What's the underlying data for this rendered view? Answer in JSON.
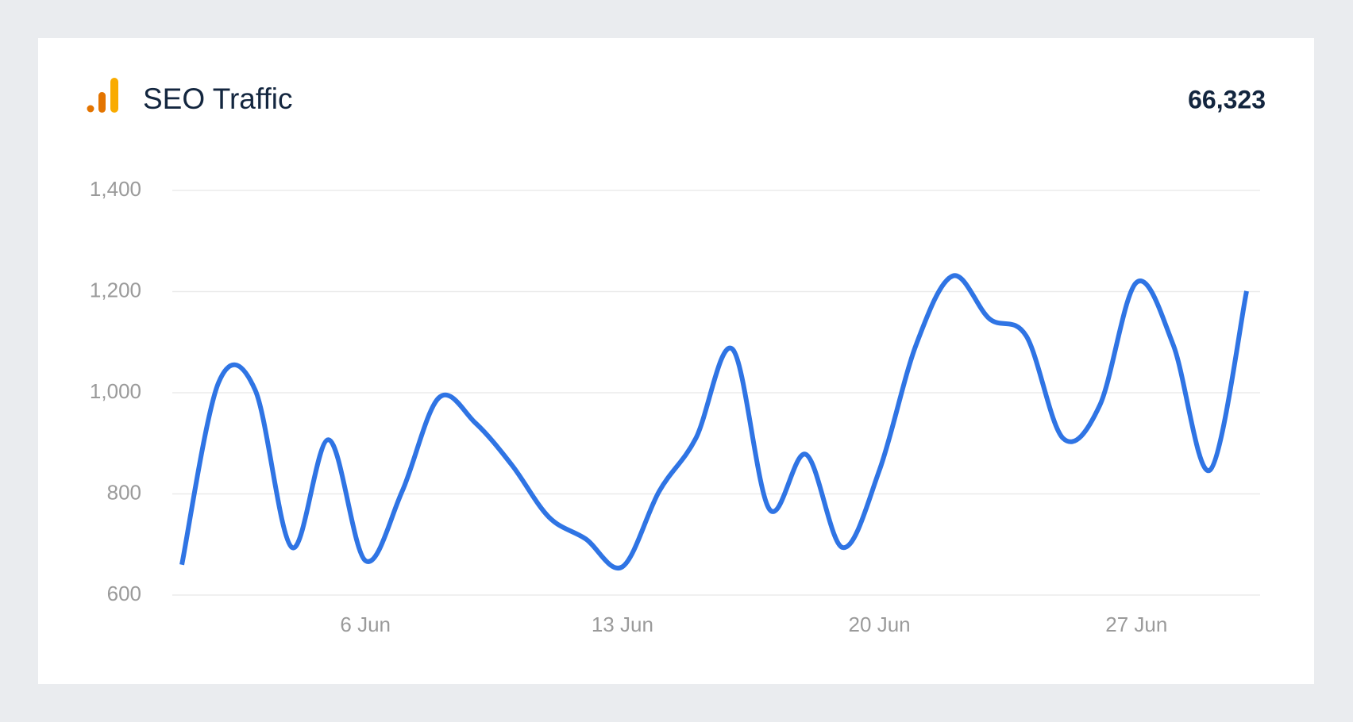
{
  "chart_data": {
    "type": "line",
    "title": "SEO Traffic",
    "total": "66,323",
    "categories": [
      null,
      null,
      null,
      null,
      null,
      "6 Jun",
      null,
      null,
      null,
      null,
      null,
      null,
      "13 Jun",
      null,
      null,
      null,
      null,
      null,
      null,
      "20 Jun",
      null,
      null,
      null,
      null,
      null,
      null,
      "27 Jun",
      null,
      null,
      null
    ],
    "series": [
      {
        "name": "SEO Traffic",
        "color": "#2f74e4",
        "values": [
          660,
          1020,
          1005,
          694,
          907,
          668,
          805,
          990,
          940,
          856,
          754,
          711,
          656,
          805,
          910,
          1086,
          770,
          878,
          694,
          847,
          1095,
          1231,
          1146,
          1112,
          910,
          975,
          1218,
          1095,
          847,
          1201
        ]
      }
    ],
    "ylim": [
      600,
      1400
    ],
    "yticks": [
      600,
      800,
      {
        "value": 1000,
        "label": "1,000"
      },
      {
        "value": 1200,
        "label": "1,200"
      },
      {
        "value": 1400,
        "label": "1,400"
      }
    ],
    "grid": true
  }
}
